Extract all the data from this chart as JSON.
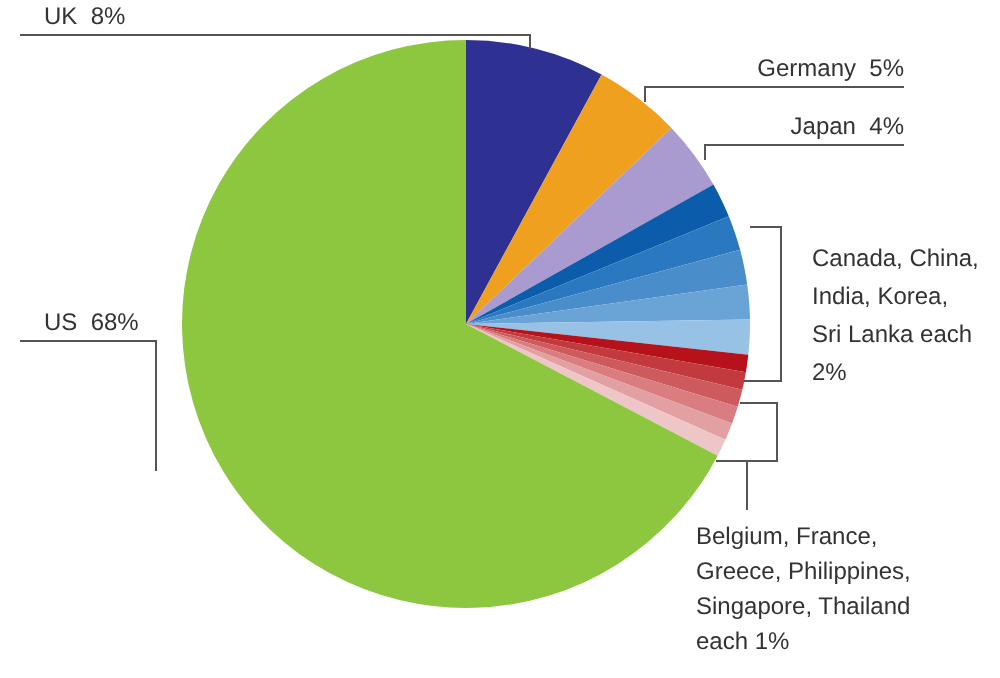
{
  "chart_data": {
    "type": "pie",
    "categories": [
      "UK",
      "Germany",
      "Japan",
      null,
      null,
      null,
      null,
      null,
      null,
      null,
      null,
      null,
      null,
      null,
      "US"
    ],
    "values": [
      8,
      5,
      4,
      2,
      2,
      2,
      2,
      2,
      1,
      1,
      1,
      1,
      1,
      1,
      68
    ],
    "value_labels": [
      "8%",
      "5%",
      "4%",
      null,
      null,
      null,
      null,
      null,
      null,
      null,
      null,
      null,
      null,
      null,
      "68%"
    ],
    "colors": [
      "#2e3192",
      "#f0a01f",
      "#a99bd0",
      "#0b5cab",
      "#2a78bf",
      "#4a8dcb",
      "#6aa3d6",
      "#97c2e6",
      "#b5121b",
      "#c33a3e",
      "#cd5a5d",
      "#d97d80",
      "#e3a0a2",
      "#efc6c7",
      "#8dc63f"
    ],
    "annotations": [
      "Canada, China, India, Korea, Sri Lanka each 2%",
      "Belgium, France, Greece, Philippines, Singapore, Thailand each 1%"
    ],
    "legend": false
  }
}
